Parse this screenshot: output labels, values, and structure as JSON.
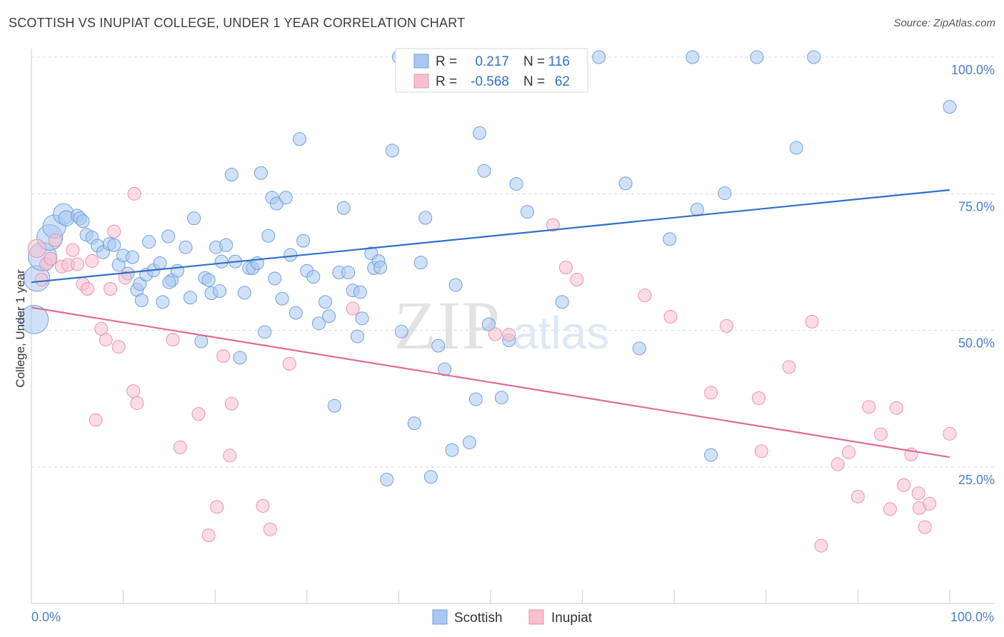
{
  "header": {
    "title": "SCOTTISH VS INUPIAT COLLEGE, UNDER 1 YEAR CORRELATION CHART",
    "source": "Source: ZipAtlas.com"
  },
  "watermark": {
    "zip": "ZIP",
    "atlas": "atlas"
  },
  "colors": {
    "scottish_fill": "#a9c8f0",
    "scottish_stroke": "#6f9fdc",
    "scottish_line": "#2f6fcc",
    "inupiat_fill": "#f7bfd0",
    "inupiat_stroke": "#e890ad",
    "inupiat_line": "#e26a96",
    "grid": "#d8d8d8",
    "tick_text": "#4a7ec9"
  },
  "legend_box": {
    "rows": [
      {
        "series": "Scottish",
        "r_label": "R =",
        "r_value": "0.217",
        "n_label": "N =",
        "n_value": "116"
      },
      {
        "series": "Inupiat",
        "r_label": "R =",
        "r_value": "-0.568",
        "n_label": "N =",
        "n_value": "62"
      }
    ]
  },
  "bottom_legend": {
    "items": [
      "Scottish",
      "Inupiat"
    ]
  },
  "chart_data": {
    "type": "scatter",
    "xlabel": "",
    "ylabel": "College, Under 1 year",
    "xlim": [
      0,
      100
    ],
    "ylim": [
      0,
      104
    ],
    "x_tick_labels": {
      "left": "0.0%",
      "right": "100.0%"
    },
    "y_ticks": [
      {
        "value": 100,
        "label": "100.0%"
      },
      {
        "value": 75,
        "label": "75.0%"
      },
      {
        "value": 50,
        "label": "50.0%"
      },
      {
        "value": 25,
        "label": "25.0%"
      }
    ],
    "grid": "horizontal dashed",
    "legend_placement": "top-center",
    "series": [
      {
        "name": "Scottish",
        "trend": {
          "x": [
            0,
            100
          ],
          "y": [
            58.8,
            75.7
          ]
        },
        "points": [
          [
            0.3,
            52,
            2.2
          ],
          [
            0.6,
            59.5,
            2.0
          ],
          [
            1.2,
            63.5,
            2.2
          ],
          [
            2.0,
            67,
            2.0
          ],
          [
            2.5,
            69,
            1.8
          ],
          [
            3.5,
            71.3,
            1.6
          ],
          [
            3.8,
            70.5,
            1.2
          ],
          [
            5.0,
            71,
            1.0
          ],
          [
            5.3,
            70.5,
            1.0
          ],
          [
            5.6,
            70,
            1.0
          ],
          [
            6.0,
            67.5,
            1.0
          ],
          [
            6.6,
            67,
            1.0
          ],
          [
            7.2,
            65.5,
            1.0
          ],
          [
            7.8,
            64.3,
            1.0
          ],
          [
            8.5,
            65.8,
            1.0
          ],
          [
            9.0,
            65.6,
            1.0
          ],
          [
            9.5,
            62,
            1.0
          ],
          [
            10.0,
            63.7,
            1.0
          ],
          [
            10.5,
            60.4,
            1.0
          ],
          [
            11.0,
            63.4,
            1.0
          ],
          [
            11.5,
            57.4,
            1.0
          ],
          [
            11.8,
            58.5,
            1.0
          ],
          [
            12.5,
            60.2,
            1.0
          ],
          [
            12.8,
            66.2,
            1.0
          ],
          [
            13.3,
            61,
            1.0
          ],
          [
            14.0,
            62.3,
            1.0
          ],
          [
            14.3,
            55.2,
            1.0
          ],
          [
            14.9,
            67.2,
            1.0
          ],
          [
            15.3,
            59.2,
            1.0
          ],
          [
            15.9,
            60.9,
            1.0
          ],
          [
            16.8,
            65.2,
            1.0
          ],
          [
            17.3,
            56,
            1.0
          ],
          [
            17.7,
            70.5,
            1.0
          ],
          [
            18.5,
            48,
            1.0
          ],
          [
            18.9,
            59.6,
            1.0
          ],
          [
            19.3,
            59.2,
            1.0
          ],
          [
            19.6,
            56.8,
            1.0
          ],
          [
            20.1,
            65.2,
            1.0
          ],
          [
            20.7,
            62.6,
            1.0
          ],
          [
            21.2,
            65.6,
            1.0
          ],
          [
            21.8,
            78.5,
            1.0
          ],
          [
            22.2,
            62.6,
            1.0
          ],
          [
            22.7,
            45,
            1.0
          ],
          [
            23.2,
            56.9,
            1.0
          ],
          [
            23.7,
            61.4,
            1.0
          ],
          [
            24.1,
            61.4,
            1.0
          ],
          [
            25.0,
            78.8,
            1.0
          ],
          [
            25.4,
            49.7,
            1.0
          ],
          [
            25.8,
            67.3,
            1.0
          ],
          [
            26.2,
            74.3,
            1.0
          ],
          [
            26.7,
            73.2,
            1.0
          ],
          [
            27.3,
            55.8,
            1.0
          ],
          [
            27.7,
            74.3,
            1.0
          ],
          [
            28.2,
            63.8,
            1.0
          ],
          [
            28.8,
            53.2,
            1.0
          ],
          [
            29.2,
            85,
            1.0
          ],
          [
            29.6,
            66.4,
            1.0
          ],
          [
            30.0,
            60.9,
            1.0
          ],
          [
            31.3,
            51.3,
            1.0
          ],
          [
            32.0,
            55.2,
            1.0
          ],
          [
            32.4,
            52.6,
            1.0
          ],
          [
            33.0,
            36.2,
            1.0
          ],
          [
            33.5,
            60.6,
            1.0
          ],
          [
            34.0,
            72.4,
            1.0
          ],
          [
            34.5,
            60.6,
            1.0
          ],
          [
            35.0,
            57.3,
            1.0
          ],
          [
            35.5,
            48.9,
            1.0
          ],
          [
            36.0,
            52.2,
            1.0
          ],
          [
            37.0,
            64.1,
            1.0
          ],
          [
            37.3,
            61.4,
            1.0
          ],
          [
            37.8,
            62.7,
            1.0
          ],
          [
            40.0,
            100,
            1.0
          ],
          [
            38.7,
            22.7,
            1.0
          ],
          [
            39.3,
            82.9,
            1.0
          ],
          [
            40.3,
            49.8,
            1.0
          ],
          [
            41.7,
            33,
            1.0
          ],
          [
            42.4,
            62.4,
            1.0
          ],
          [
            42.9,
            70.6,
            1.0
          ],
          [
            43.5,
            23.2,
            1.0
          ],
          [
            44.3,
            47.2,
            1.0
          ],
          [
            45.0,
            42.9,
            1.0
          ],
          [
            45.8,
            28.1,
            1.0
          ],
          [
            46.2,
            58.3,
            1.0
          ],
          [
            47.7,
            29.5,
            1.0
          ],
          [
            48.4,
            37.4,
            1.0
          ],
          [
            48.8,
            86.1,
            1.0
          ],
          [
            49.3,
            79.2,
            1.0
          ],
          [
            49.8,
            51.1,
            1.0
          ],
          [
            51.2,
            37.7,
            1.0
          ],
          [
            52.0,
            48.2,
            1.0
          ],
          [
            52.8,
            76.8,
            1.0
          ],
          [
            53.5,
            100,
            1.0
          ],
          [
            54.0,
            71.7,
            1.0
          ],
          [
            57.8,
            55.2,
            1.0
          ],
          [
            59.6,
            100,
            1.0
          ],
          [
            61.8,
            100,
            1.0
          ],
          [
            64.7,
            76.9,
            1.0
          ],
          [
            66.2,
            46.7,
            1.0
          ],
          [
            69.5,
            66.7,
            1.0
          ],
          [
            72.0,
            100,
            1.0
          ],
          [
            72.5,
            72.1,
            1.0
          ],
          [
            74.0,
            27.2,
            1.0
          ],
          [
            75.5,
            75.1,
            1.0
          ],
          [
            79.0,
            100,
            1.0
          ],
          [
            83.3,
            83.4,
            1.0
          ],
          [
            85.2,
            100,
            1.0
          ],
          [
            100.0,
            90.9,
            1.0
          ],
          [
            38.0,
            61.5,
            1.0
          ],
          [
            26.5,
            59.5,
            1.0
          ],
          [
            15.0,
            58.8,
            1.0
          ],
          [
            12.0,
            55.5,
            1.0
          ],
          [
            20.5,
            57.2,
            1.0
          ],
          [
            24.6,
            62.3,
            1.0
          ],
          [
            35.8,
            57.0,
            1.0
          ],
          [
            30.7,
            59.8,
            1.0
          ]
        ]
      },
      {
        "name": "Inupiat",
        "trend": {
          "x": [
            0,
            100
          ],
          "y": [
            54.2,
            26.8
          ]
        },
        "points": [
          [
            0.6,
            65,
            1.4
          ],
          [
            1.1,
            59.3,
            1.0
          ],
          [
            1.6,
            62.1,
            1.0
          ],
          [
            2.1,
            63.1,
            1.0
          ],
          [
            2.6,
            66.5,
            1.0
          ],
          [
            3.3,
            61.7,
            1.0
          ],
          [
            4.0,
            62.0,
            1.0
          ],
          [
            4.5,
            64.7,
            1.0
          ],
          [
            5.0,
            62.1,
            1.0
          ],
          [
            5.6,
            58.5,
            1.0
          ],
          [
            6.1,
            57.6,
            1.0
          ],
          [
            6.6,
            62.7,
            1.0
          ],
          [
            7.0,
            33.6,
            1.0
          ],
          [
            7.6,
            50.3,
            1.0
          ],
          [
            8.1,
            48.3,
            1.0
          ],
          [
            8.6,
            57.6,
            1.0
          ],
          [
            9.0,
            68.1,
            1.0
          ],
          [
            9.5,
            47,
            1.0
          ],
          [
            10.2,
            59.6,
            1.0
          ],
          [
            11.1,
            38.9,
            1.0
          ],
          [
            11.5,
            36.7,
            1.0
          ],
          [
            11.2,
            75,
            1.0
          ],
          [
            15.4,
            48.3,
            1.0
          ],
          [
            16.2,
            28.6,
            1.0
          ],
          [
            18.2,
            34.7,
            1.0
          ],
          [
            19.3,
            12.5,
            1.0
          ],
          [
            20.2,
            17.7,
            1.0
          ],
          [
            20.9,
            45.3,
            1.0
          ],
          [
            21.6,
            27.1,
            1.0
          ],
          [
            21.8,
            36.6,
            1.0
          ],
          [
            25.2,
            17.9,
            1.0
          ],
          [
            26.0,
            13.6,
            1.0
          ],
          [
            28.1,
            43.9,
            1.0
          ],
          [
            35.0,
            54.0,
            1.0
          ],
          [
            50.5,
            49.3,
            1.0
          ],
          [
            52.0,
            49.2,
            1.0
          ],
          [
            56.8,
            69.3,
            1.0
          ],
          [
            58.2,
            61.5,
            1.0
          ],
          [
            59.4,
            59.3,
            1.0
          ],
          [
            66.8,
            56.4,
            1.0
          ],
          [
            69.6,
            52.5,
            1.0
          ],
          [
            74.0,
            38.6,
            1.0
          ],
          [
            75.7,
            50.8,
            1.0
          ],
          [
            79.2,
            37.6,
            1.0
          ],
          [
            79.5,
            27.9,
            1.0
          ],
          [
            82.5,
            43.3,
            1.0
          ],
          [
            85.0,
            51.6,
            1.0
          ],
          [
            86.0,
            10.6,
            1.0
          ],
          [
            87.8,
            25.5,
            1.0
          ],
          [
            89.0,
            27.7,
            1.0
          ],
          [
            90.0,
            19.6,
            1.0
          ],
          [
            91.2,
            36.0,
            1.0
          ],
          [
            92.5,
            31.0,
            1.0
          ],
          [
            93.5,
            17.3,
            1.0
          ],
          [
            94.2,
            35.8,
            1.0
          ],
          [
            95.0,
            21.7,
            1.0
          ],
          [
            95.8,
            27.3,
            1.0
          ],
          [
            96.6,
            20.2,
            1.0
          ],
          [
            96.7,
            17.5,
            1.0
          ],
          [
            97.3,
            14.0,
            1.0
          ],
          [
            97.8,
            18.3,
            1.0
          ],
          [
            100.0,
            31.1,
            1.0
          ]
        ]
      }
    ]
  }
}
